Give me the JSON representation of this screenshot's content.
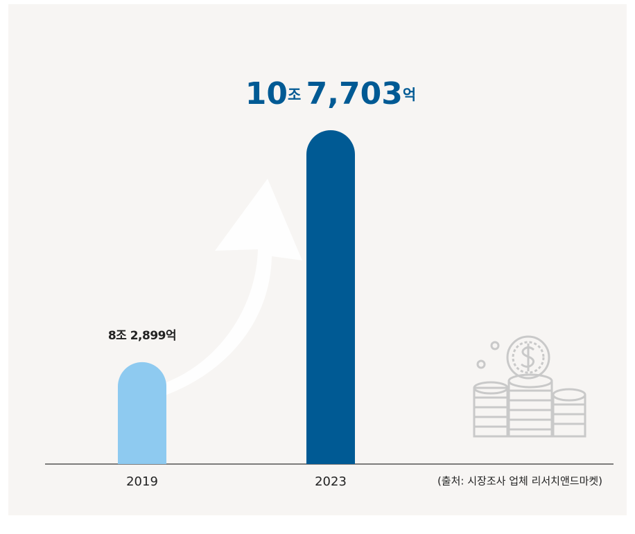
{
  "chart_data": {
    "type": "bar",
    "categories": [
      "2019",
      "2023"
    ],
    "values": [
      82899,
      107703
    ],
    "value_labels": [
      "8조 2,899억",
      "10조 7,703억"
    ],
    "colors": [
      "#8ecaf0",
      "#005a94"
    ],
    "ylim": [
      72000,
      108000
    ],
    "source": "(출처: 시장조사 업체 리서치앤드마켓)"
  }
}
